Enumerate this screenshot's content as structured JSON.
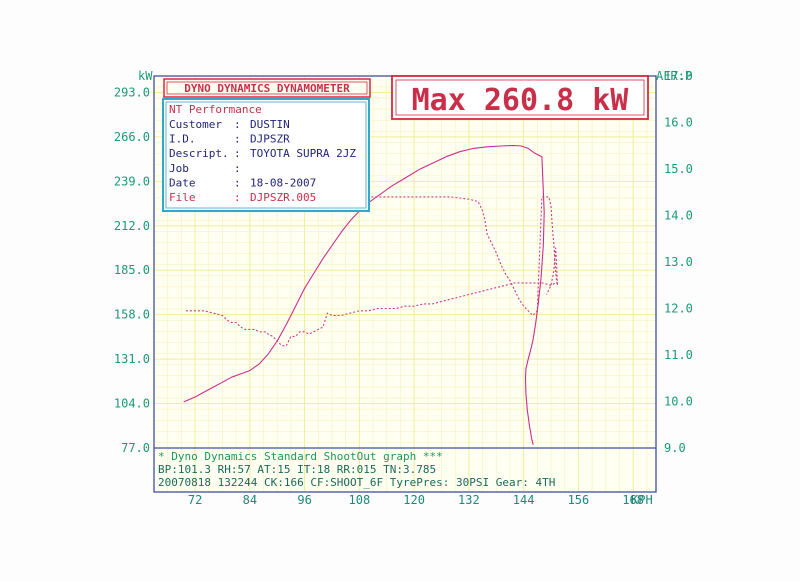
{
  "chart_data": {
    "type": "line",
    "title": "DYNO DYNAMICS DYNAMOMETER",
    "headline": "Max 260.8 kW",
    "left_unit": "kW",
    "right_unit": "AFR:P",
    "x_unit": "KPH",
    "xlim": [
      63,
      173
    ],
    "ylim_left": [
      77,
      303
    ],
    "ylim_right": [
      9.0,
      17.0
    ],
    "left_ticks": [
      "293.0",
      "266.0",
      "239.0",
      "212.0",
      "185.0",
      "158.0",
      "131.0",
      "104.0",
      "77.0"
    ],
    "left_tick_values": [
      293,
      266,
      239,
      212,
      185,
      158,
      131,
      104,
      77
    ],
    "right_ticks": [
      "17.0",
      "16.0",
      "15.0",
      "14.0",
      "13.0",
      "12.0",
      "11.0",
      "10.0",
      "9.0"
    ],
    "right_tick_values": [
      17,
      16,
      15,
      14,
      13,
      12,
      11,
      10,
      9
    ],
    "x_ticks": [
      "72",
      "84",
      "96",
      "108",
      "120",
      "132",
      "144",
      "156",
      "168"
    ],
    "x_tick_values": [
      72,
      84,
      96,
      108,
      120,
      132,
      144,
      156,
      168
    ],
    "grid": true,
    "series": [
      {
        "style": "solid",
        "axis": "left",
        "x": [
          69.5,
          72,
          74,
          76,
          78,
          80,
          82,
          84,
          86,
          88,
          90,
          92,
          94,
          96,
          98,
          100,
          102,
          104,
          106,
          108,
          110,
          112,
          115,
          118,
          121,
          124,
          127,
          130,
          133,
          136,
          139,
          142,
          143.5,
          145,
          146.5,
          148,
          148.5,
          148.3,
          147.8,
          147.2,
          146.6,
          146,
          145.4,
          144.9,
          144.5,
          144.4,
          144.5,
          144.8,
          145.3,
          145.8,
          146.1
        ],
        "y": [
          105,
          108,
          111,
          114,
          117,
          120,
          122,
          124,
          128,
          134,
          142,
          152,
          163,
          174,
          183,
          192,
          200,
          208,
          215,
          221,
          226,
          230,
          236,
          241,
          246,
          250,
          254,
          257,
          259,
          260,
          260.5,
          260.8,
          260.5,
          259,
          256,
          254,
          220,
          200,
          180,
          165,
          152,
          142,
          135,
          130,
          125,
          120,
          110,
          100,
          90,
          82,
          79
        ]
      },
      {
        "style": "dashed",
        "axis": "right",
        "x": [
          70,
          72,
          74,
          76,
          78,
          79,
          80,
          81,
          82,
          83,
          84,
          85,
          86,
          87,
          87.5,
          88,
          89,
          90,
          91,
          92,
          93,
          94,
          95,
          96,
          97,
          98,
          99,
          100,
          101,
          102,
          103,
          104,
          106,
          108,
          110,
          112,
          114,
          116,
          118,
          120,
          122,
          124,
          126,
          128,
          130,
          132,
          134,
          136,
          138,
          140,
          142,
          144,
          146,
          148,
          150,
          151,
          151.5
        ],
        "y": [
          11.95,
          11.95,
          11.95,
          11.9,
          11.85,
          11.75,
          11.7,
          11.7,
          11.6,
          11.55,
          11.55,
          11.55,
          11.5,
          11.5,
          11.5,
          11.45,
          11.4,
          11.3,
          11.2,
          11.2,
          11.4,
          11.4,
          11.5,
          11.5,
          11.45,
          11.5,
          11.55,
          11.6,
          11.9,
          11.85,
          11.85,
          11.85,
          11.9,
          11.95,
          11.95,
          12.0,
          12.0,
          12.0,
          12.05,
          12.05,
          12.1,
          12.1,
          12.15,
          12.2,
          12.25,
          12.3,
          12.35,
          12.4,
          12.45,
          12.5,
          12.55,
          12.55,
          12.55,
          12.55,
          12.5,
          12.55,
          12.55
        ]
      },
      {
        "style": "dashed",
        "axis": "right",
        "x": [
          108,
          112,
          116,
          120,
          124,
          128,
          132,
          134,
          135,
          135.5,
          136,
          137,
          138,
          139,
          140,
          141,
          142,
          143,
          144,
          145,
          146,
          147,
          148,
          149,
          149.5,
          150,
          150.2,
          150.4,
          150.6,
          150.8,
          151,
          151.2,
          151.4,
          151.2,
          151,
          150.6,
          150,
          149.5,
          149
        ],
        "y": [
          14.4,
          14.4,
          14.4,
          14.4,
          14.4,
          14.4,
          14.35,
          14.3,
          14.1,
          13.9,
          13.6,
          13.4,
          13.2,
          12.95,
          12.75,
          12.6,
          12.4,
          12.2,
          12.05,
          11.95,
          11.85,
          11.95,
          14.4,
          14.4,
          14.4,
          14.2,
          13.9,
          13.6,
          13.4,
          13.1,
          12.8,
          12.6,
          12.5,
          13.0,
          13.3,
          12.8,
          12.5,
          12.4,
          12.3
        ]
      }
    ],
    "info_box": {
      "company": "NT Performance",
      "rows": [
        {
          "label": "Customer",
          "value": "DUSTIN"
        },
        {
          "label": "I.D.",
          "value": "DJPSZR"
        },
        {
          "label": "Descript.",
          "value": "TOYOTA SUPRA 2JZ"
        },
        {
          "label": "Job",
          "value": ""
        },
        {
          "label": "Date",
          "value": "18-08-2007"
        },
        {
          "label": "File",
          "value": "DJPSZR.005"
        }
      ],
      "sep": ":"
    },
    "footer": {
      "line1": "* Dyno Dynamics Standard ShootOut graph ***",
      "line2": "BP:101.3 RH:57 AT:15 IT:18  RR:015 TN:3.785",
      "line3": "20070818 132244 CK:166 CF:SHOOT_6F TyrePres: 30PSI     Gear: 4TH"
    },
    "colors": {
      "axis": "#3f4f9f",
      "grid": "#f4ee9a",
      "grid_fine": "#f8f4c4",
      "plot_bg": "#fffff2",
      "power_curve": "#d02c8c",
      "afr_curve": "#d0388c",
      "left_ticks": "#1a9a78",
      "right_ticks": "#1a9a78",
      "x_ticks": "#1a8a7a",
      "box_border_red": "#d8283c",
      "box_border_cyan": "#32a8c8",
      "info_label": "#22247a",
      "company": "#c8304a",
      "file_text": "#d02c4c",
      "footer_green": "#1a9a5a"
    }
  }
}
